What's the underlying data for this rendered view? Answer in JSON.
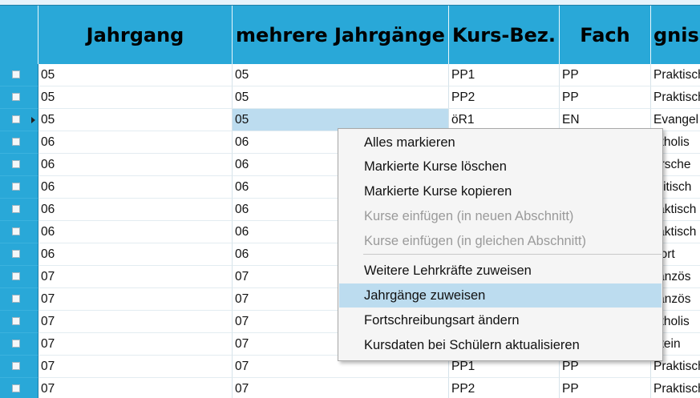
{
  "columns": [
    "",
    "Jahrgang",
    "mehrere Jahrgänge",
    "Kurs-Bez.",
    "Fach",
    "gnis"
  ],
  "rows": [
    {
      "jahrgang": "05",
      "mehrere": "05",
      "kurs": "PP1",
      "fach": "PP",
      "extra": "Praktisch"
    },
    {
      "jahrgang": "05",
      "mehrere": "05",
      "kurs": "PP2",
      "fach": "PP",
      "extra": "Praktisch"
    },
    {
      "jahrgang": "05",
      "mehrere": "05",
      "kurs": "öR1",
      "fach": "EN",
      "extra": "Evangel"
    },
    {
      "jahrgang": "06",
      "mehrere": "06",
      "kurs": "",
      "fach": "",
      "extra": "atholis"
    },
    {
      "jahrgang": "06",
      "mehrere": "06",
      "kurs": "",
      "fach": "",
      "extra": "orsche"
    },
    {
      "jahrgang": "06",
      "mehrere": "06",
      "kurs": "",
      "fach": "",
      "extra": "olitisch"
    },
    {
      "jahrgang": "06",
      "mehrere": "06",
      "kurs": "",
      "fach": "",
      "extra": "raktisch"
    },
    {
      "jahrgang": "06",
      "mehrere": "06",
      "kurs": "",
      "fach": "",
      "extra": "raktisch"
    },
    {
      "jahrgang": "06",
      "mehrere": "06",
      "kurs": "",
      "fach": "",
      "extra": "port"
    },
    {
      "jahrgang": "07",
      "mehrere": "07",
      "kurs": "",
      "fach": "",
      "extra": "ranzös"
    },
    {
      "jahrgang": "07",
      "mehrere": "07",
      "kurs": "",
      "fach": "",
      "extra": "ranzös"
    },
    {
      "jahrgang": "07",
      "mehrere": "07",
      "kurs": "",
      "fach": "",
      "extra": "atholis"
    },
    {
      "jahrgang": "07",
      "mehrere": "07",
      "kurs": "",
      "fach": "",
      "extra": "atein"
    },
    {
      "jahrgang": "07",
      "mehrere": "07",
      "kurs": "PP1",
      "fach": "PP",
      "extra": "Praktisch"
    },
    {
      "jahrgang": "07",
      "mehrere": "07",
      "kurs": "PP2",
      "fach": "PP",
      "extra": "Praktisch"
    }
  ],
  "context_menu": {
    "items": [
      {
        "label": "Alles markieren",
        "enabled": true
      },
      {
        "label": "Markierte Kurse löschen",
        "enabled": true
      },
      {
        "label": "Markierte Kurse kopieren",
        "enabled": true
      },
      {
        "label": "Kurse einfügen (in neuen Abschnitt)",
        "enabled": false
      },
      {
        "label": "Kurse einfügen (in gleichen Abschnitt)",
        "enabled": false
      },
      {
        "label": "Weitere Lehrkräfte zuweisen",
        "enabled": true
      },
      {
        "label": "Jahrgänge zuweisen",
        "enabled": true,
        "hovered": true
      },
      {
        "label": "Fortschreibungsart ändern",
        "enabled": true
      },
      {
        "label": "Kursdaten bei Schülern aktualisieren",
        "enabled": true
      }
    ]
  },
  "colors": {
    "header_bg": "#29a8d8",
    "selection_highlight": "#bcdcef",
    "menu_bg": "#f5f5f5",
    "disabled_text": "#9a9a9a"
  }
}
